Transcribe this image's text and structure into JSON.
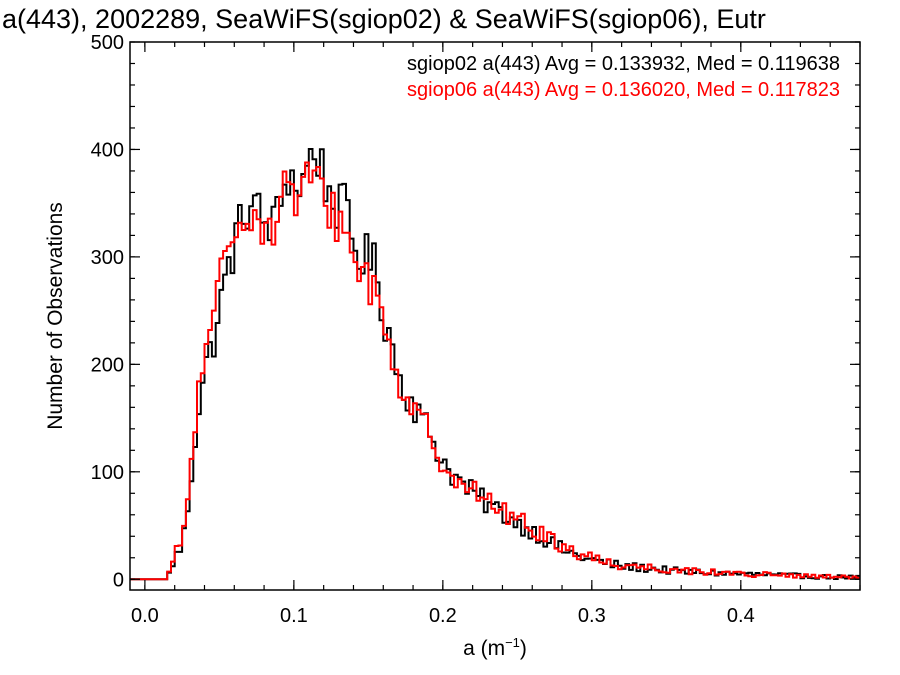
{
  "chart_data": {
    "type": "line",
    "title": "a(443), 2002289, SeaWiFS(sgiop02) & SeaWiFS(sgiop06), Eutr",
    "xlabel_base": "a (m",
    "xlabel_sup": "−1",
    "xlabel_close": ")",
    "ylabel": "Number of Observations",
    "xlim": [
      -0.01,
      0.48
    ],
    "ylim": [
      -10,
      500
    ],
    "x_ticks": [
      "0.0",
      "0.1",
      "0.2",
      "0.3",
      "0.4"
    ],
    "y_ticks": [
      "0",
      "100",
      "200",
      "300",
      "400",
      "500"
    ],
    "bin_width": 0.0025,
    "series": [
      {
        "name": "sgiop02",
        "label": "sgiop02 a(443) Avg = 0.133932, Med = 0.119638",
        "color": "#000000",
        "profile": [
          [
            0.0,
            0
          ],
          [
            0.015,
            0
          ],
          [
            0.02,
            20
          ],
          [
            0.025,
            30
          ],
          [
            0.03,
            80
          ],
          [
            0.035,
            150
          ],
          [
            0.04,
            195
          ],
          [
            0.045,
            215
          ],
          [
            0.05,
            250
          ],
          [
            0.055,
            285
          ],
          [
            0.06,
            310
          ],
          [
            0.065,
            335
          ],
          [
            0.07,
            350
          ],
          [
            0.075,
            345
          ],
          [
            0.08,
            330
          ],
          [
            0.085,
            330
          ],
          [
            0.09,
            340
          ],
          [
            0.095,
            380
          ],
          [
            0.1,
            370
          ],
          [
            0.105,
            365
          ],
          [
            0.11,
            390
          ],
          [
            0.115,
            400
          ],
          [
            0.12,
            375
          ],
          [
            0.125,
            355
          ],
          [
            0.13,
            345
          ],
          [
            0.135,
            345
          ],
          [
            0.14,
            310
          ],
          [
            0.145,
            300
          ],
          [
            0.15,
            300
          ],
          [
            0.155,
            290
          ],
          [
            0.16,
            245
          ],
          [
            0.165,
            225
          ],
          [
            0.17,
            190
          ],
          [
            0.175,
            175
          ],
          [
            0.18,
            165
          ],
          [
            0.185,
            150
          ],
          [
            0.19,
            140
          ],
          [
            0.2,
            110
          ],
          [
            0.21,
            92
          ],
          [
            0.22,
            80
          ],
          [
            0.23,
            70
          ],
          [
            0.24,
            62
          ],
          [
            0.25,
            52
          ],
          [
            0.26,
            45
          ],
          [
            0.27,
            36
          ],
          [
            0.28,
            28
          ],
          [
            0.29,
            22
          ],
          [
            0.3,
            18
          ],
          [
            0.31,
            15
          ],
          [
            0.32,
            12
          ],
          [
            0.34,
            10
          ],
          [
            0.36,
            7
          ],
          [
            0.38,
            6
          ],
          [
            0.4,
            5
          ],
          [
            0.42,
            4
          ],
          [
            0.44,
            3
          ],
          [
            0.46,
            2
          ],
          [
            0.48,
            2
          ]
        ]
      },
      {
        "name": "sgiop06",
        "label": "sgiop06 a(443) Avg = 0.136020, Med = 0.117823",
        "color": "#ff0000",
        "profile": [
          [
            0.0,
            0
          ],
          [
            0.015,
            0
          ],
          [
            0.02,
            22
          ],
          [
            0.025,
            35
          ],
          [
            0.03,
            90
          ],
          [
            0.035,
            165
          ],
          [
            0.04,
            205
          ],
          [
            0.045,
            225
          ],
          [
            0.05,
            275
          ],
          [
            0.055,
            305
          ],
          [
            0.06,
            320
          ],
          [
            0.065,
            345
          ],
          [
            0.07,
            350
          ],
          [
            0.075,
            335
          ],
          [
            0.08,
            325
          ],
          [
            0.085,
            330
          ],
          [
            0.09,
            340
          ],
          [
            0.095,
            370
          ],
          [
            0.1,
            355
          ],
          [
            0.105,
            355
          ],
          [
            0.11,
            370
          ],
          [
            0.115,
            375
          ],
          [
            0.12,
            350
          ],
          [
            0.125,
            345
          ],
          [
            0.13,
            335
          ],
          [
            0.135,
            320
          ],
          [
            0.14,
            300
          ],
          [
            0.145,
            290
          ],
          [
            0.15,
            280
          ],
          [
            0.155,
            265
          ],
          [
            0.16,
            240
          ],
          [
            0.165,
            215
          ],
          [
            0.17,
            185
          ],
          [
            0.175,
            170
          ],
          [
            0.18,
            160
          ],
          [
            0.185,
            145
          ],
          [
            0.19,
            138
          ],
          [
            0.2,
            110
          ],
          [
            0.21,
            95
          ],
          [
            0.22,
            82
          ],
          [
            0.23,
            72
          ],
          [
            0.24,
            64
          ],
          [
            0.25,
            55
          ],
          [
            0.26,
            47
          ],
          [
            0.27,
            39
          ],
          [
            0.28,
            31
          ],
          [
            0.29,
            25
          ],
          [
            0.3,
            20
          ],
          [
            0.31,
            16
          ],
          [
            0.32,
            13
          ],
          [
            0.34,
            11
          ],
          [
            0.36,
            8
          ],
          [
            0.38,
            7
          ],
          [
            0.4,
            5
          ],
          [
            0.42,
            4
          ],
          [
            0.44,
            3
          ],
          [
            0.46,
            2
          ],
          [
            0.48,
            2
          ]
        ]
      }
    ],
    "grid": false,
    "legend_position": "top-right"
  }
}
